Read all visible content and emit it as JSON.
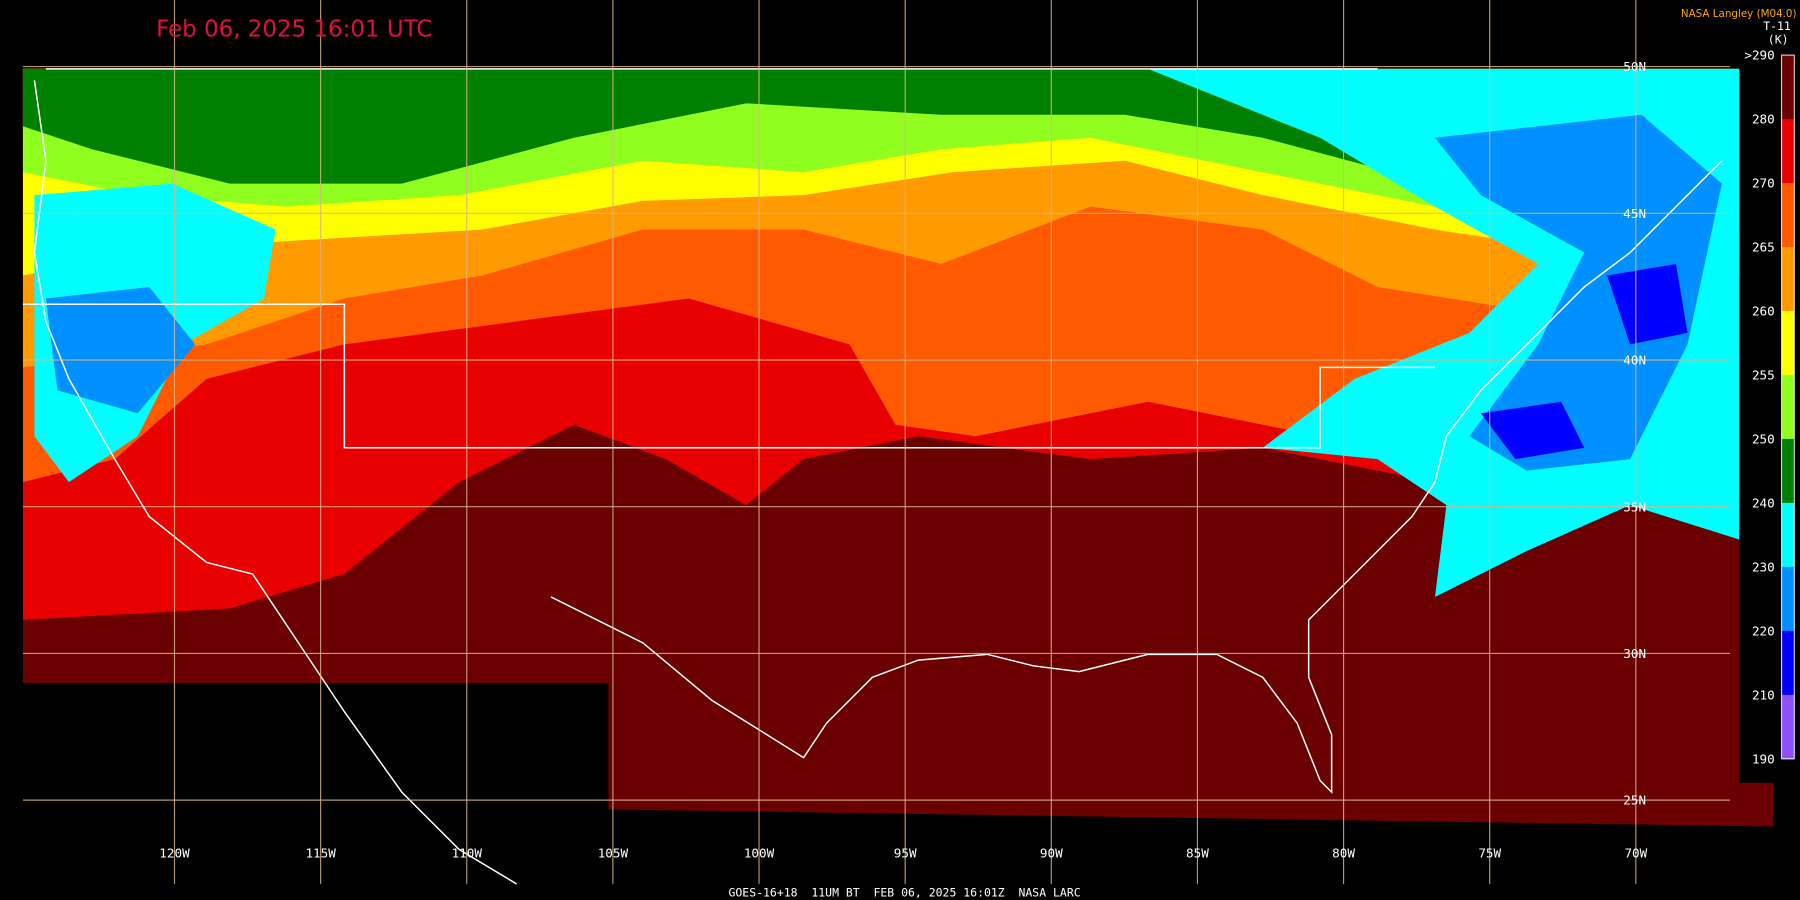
{
  "header": {
    "title": "Feb 06, 2025 16:01 UTC",
    "source": "NASA Langley (M04.0)",
    "product": "T-11",
    "unit": "(K)"
  },
  "colorbar": {
    "labels": [
      ">290",
      "280",
      "270",
      "265",
      "260",
      "255",
      "250",
      "240",
      "230",
      "220",
      "210",
      "190"
    ],
    "colors": [
      "#6b0000",
      "#e80000",
      "#ff5a00",
      "#ff9a00",
      "#ffff00",
      "#90ff20",
      "#008000",
      "#00ffff",
      "#0090ff",
      "#0000ff",
      "#9050ff"
    ]
  },
  "longitudes": [
    "120W",
    "115W",
    "110W",
    "105W",
    "100W",
    "95W",
    "90W",
    "85W",
    "80W",
    "75W",
    "70W"
  ],
  "latitudes": [
    "50N",
    "45N",
    "40N",
    "35N",
    "30N",
    "25N"
  ],
  "footer": "GOES-16+18  11UM BT  FEB 06, 2025 16:01Z  NASA LARC"
}
